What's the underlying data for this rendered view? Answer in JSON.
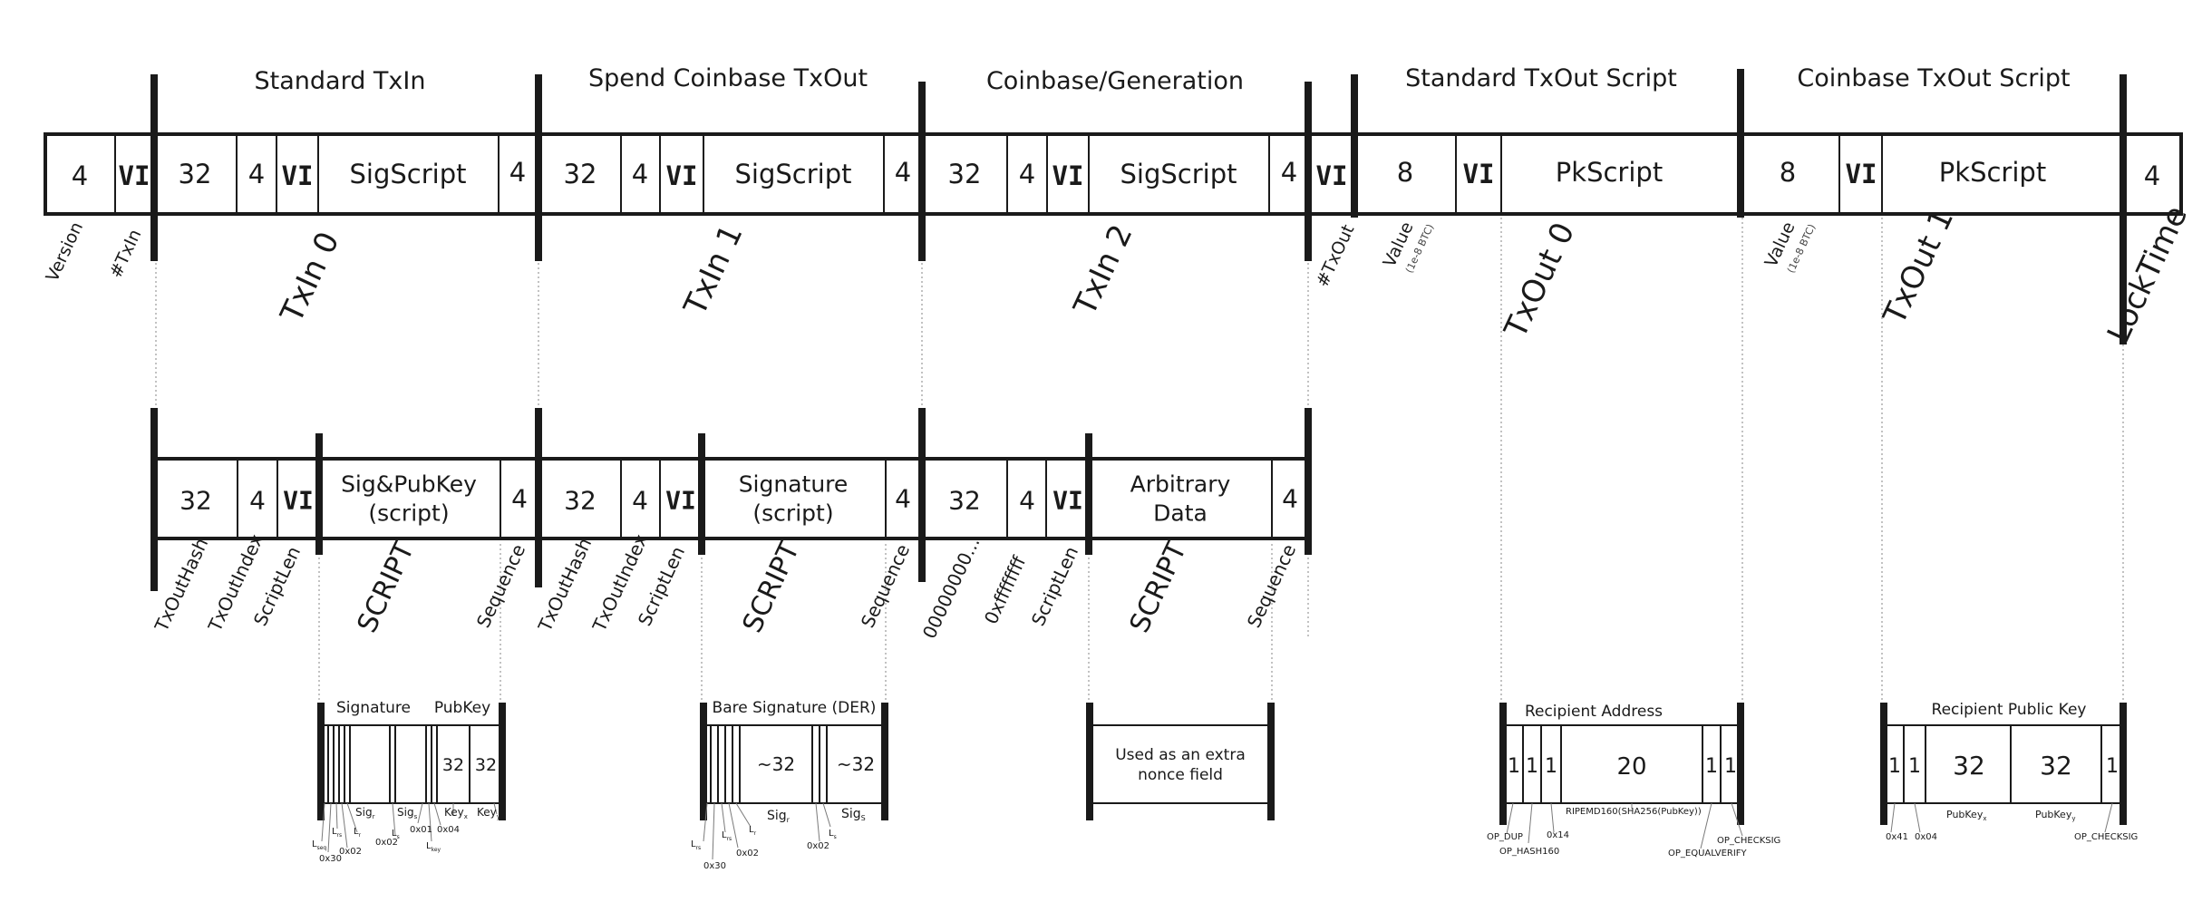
{
  "top": {
    "headers": [
      "Standard TxIn",
      "Spend Coinbase TxOut",
      "Coinbase/Generation",
      "Standard TxOut Script",
      "Coinbase TxOut Script"
    ],
    "cells": [
      "4",
      "VI",
      "32",
      "4",
      "VI",
      "SigScript",
      "4",
      "32",
      "4",
      "VI",
      "SigScript",
      "4",
      "32",
      "4",
      "VI",
      "SigScript",
      "4",
      "VI",
      "8",
      "VI",
      "PkScript",
      "8",
      "VI",
      "PkScript",
      "4"
    ],
    "labels": [
      "Version",
      "#TxIn",
      "TxIn 0",
      "TxIn 1",
      "TxIn 2",
      "#TxOut",
      "Value",
      "(1e-8 BTC)",
      "TxOut 0",
      "Value",
      "(1e-8 BTC)",
      "TxOut 1",
      "LockTime"
    ]
  },
  "middle": {
    "cells": [
      "32",
      "4",
      "VI",
      "Sig&PubKey",
      "(script)",
      "4",
      "32",
      "4",
      "VI",
      "Signature",
      "(script)",
      "4",
      "32",
      "4",
      "VI",
      "Arbitrary",
      "Data",
      "4"
    ],
    "labels": [
      "TxOutHash",
      "TxOutIndex",
      "ScriptLen",
      "SCRIPT",
      "Sequence",
      "TxOutHash",
      "TxOutIndex",
      "ScriptLen",
      "SCRIPT",
      "Sequence",
      "00000000...",
      "0xffffffff",
      "ScriptLen",
      "SCRIPT",
      "Sequence"
    ]
  },
  "bottom": {
    "titles": [
      "Signature",
      "PubKey",
      "Bare Signature (DER)",
      "Recipient Address",
      "Recipient Public Key"
    ],
    "cells": [
      "32",
      "32",
      "~32",
      "~32",
      "Used as an extra",
      "nonce field",
      "1",
      "1",
      "1",
      "20",
      "1",
      "1",
      "1",
      "1",
      "32",
      "32",
      "1"
    ],
    "notes": [
      "L",
      "seq",
      "0x30",
      "L",
      "rs",
      "0x02",
      "L",
      "r",
      "Sig",
      "r",
      "0x02",
      "L",
      "s",
      "Sig",
      "s",
      "0x01",
      "0x04",
      "L",
      "key",
      "Key",
      "x",
      "Key",
      "y",
      "L",
      "rs",
      "0x30",
      "L",
      "rs",
      "0x02",
      "L",
      "r",
      "Sig",
      "r",
      "0x02",
      "L",
      "s",
      "Sig",
      "S",
      "OP_DUP",
      "OP_HASH160",
      "0x14",
      "RIPEMD160(SHA256(PubKey))",
      "OP_EQUALVERIFY",
      "OP_CHECKSIG",
      "0x41",
      "0x04",
      "PubKey",
      "x",
      "PubKey",
      "y",
      "OP_CHECKSIG"
    ]
  }
}
